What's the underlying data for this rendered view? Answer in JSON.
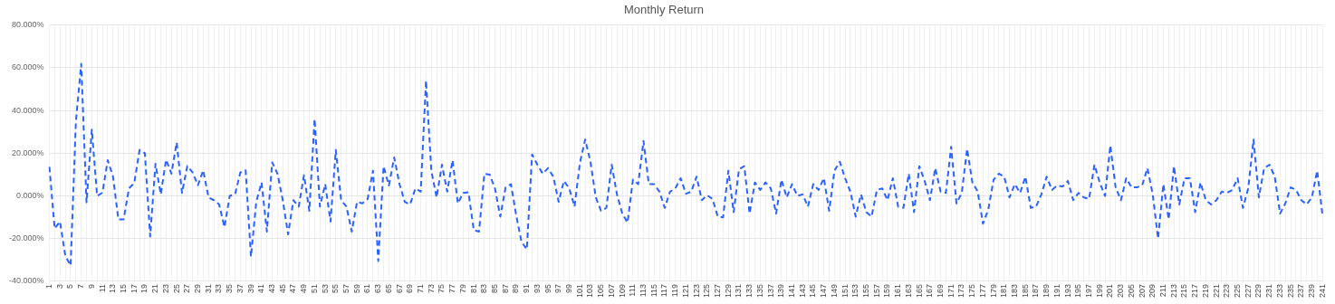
{
  "chart_data": {
    "type": "line",
    "title": "Monthly Return",
    "categories": [
      "1",
      null,
      "3",
      null,
      "5",
      null,
      "7",
      null,
      "9",
      null,
      "11",
      null,
      "13",
      null,
      "15",
      null,
      "17",
      null,
      "19",
      null,
      "21",
      null,
      "23",
      null,
      "25",
      null,
      "27",
      null,
      "29",
      null,
      "31",
      null,
      "33",
      null,
      "35",
      null,
      "37",
      null,
      "39",
      null,
      "41",
      null,
      "43",
      null,
      "45",
      null,
      "47",
      null,
      "49",
      null,
      "51",
      null,
      "53",
      null,
      "55",
      null,
      "57",
      null,
      "59",
      null,
      "61",
      null,
      "63",
      null,
      "65",
      null,
      "67",
      null,
      "69",
      null,
      "71",
      null,
      "73",
      null,
      "75",
      null,
      "77",
      null,
      "79",
      null,
      "81",
      null,
      "83",
      null,
      "85",
      null,
      "87",
      null,
      "89",
      null,
      "91",
      null,
      "93",
      null,
      "95",
      null,
      "97",
      null,
      "99",
      null,
      "101",
      null,
      "103",
      null,
      "105",
      null,
      "107",
      null,
      "109",
      null,
      "111",
      null,
      "113",
      null,
      "115",
      null,
      "117",
      null,
      "119",
      null,
      "121",
      null,
      "123",
      null,
      "125",
      null,
      "127",
      null,
      "129",
      null,
      "131",
      null,
      "133",
      null,
      "135",
      null,
      "137",
      null,
      "139",
      null,
      "141",
      null,
      "143",
      null,
      "145",
      null,
      "147",
      null,
      "149",
      null,
      "151",
      null,
      "153",
      null,
      "155",
      null,
      "157",
      null,
      "159",
      null,
      "161",
      null,
      "163",
      null,
      "165",
      null,
      "167",
      null,
      "169",
      null,
      "171",
      null,
      "173",
      null,
      "175",
      null,
      "177",
      null,
      "179",
      null,
      "181",
      null,
      "183",
      null,
      "185",
      null,
      "187",
      null,
      "189",
      null,
      "191",
      null,
      "193",
      null,
      "195",
      null,
      "197",
      null,
      "199",
      null,
      "201",
      null,
      "203",
      null,
      "205",
      null,
      "207",
      null,
      "209",
      null,
      "211",
      null,
      "213",
      null,
      "215",
      null,
      "217",
      null,
      "219",
      null,
      "221",
      null,
      "223",
      null,
      "225",
      null,
      "227",
      null,
      "229",
      null,
      "231",
      null,
      "233",
      null,
      "235",
      null,
      "237",
      null,
      "239",
      null,
      "241"
    ],
    "series": [
      {
        "color": "#2962ff",
        "values": [
          13.6,
          -15.3,
          -12,
          -28,
          -32.6,
          35,
          61.8,
          -3,
          31,
          0,
          1.5,
          16.7,
          9,
          -11,
          -11,
          3.5,
          6,
          21.5,
          20,
          -19,
          15,
          0.7,
          17,
          10.4,
          25,
          1.4,
          14,
          11,
          5,
          12,
          -0.7,
          -2,
          -4,
          -14.6,
          0,
          0.7,
          11,
          12,
          -28.5,
          -2.8,
          6.3,
          -16.7,
          15.7,
          10.4,
          -2,
          -18,
          -2,
          -5,
          9.7,
          -7,
          36,
          -5,
          5.5,
          -12,
          21.5,
          -2,
          -5,
          -16.7,
          -2.8,
          -3.5,
          -1.4,
          11.8,
          -30.5,
          13.9,
          4.9,
          18,
          5.5,
          -2.8,
          -4,
          3.5,
          2,
          54,
          11.8,
          -0.7,
          14.6,
          2,
          16.7,
          -3.5,
          1.4,
          1.7,
          -16,
          -16.7,
          10.4,
          10,
          3.5,
          -9.7,
          4,
          5.5,
          -9,
          -21.5,
          -25,
          19.4,
          14.6,
          10.4,
          13,
          9,
          -2.8,
          7,
          3.5,
          -5,
          15.3,
          26.4,
          16,
          -0.7,
          -7,
          -5.6,
          14.6,
          0.7,
          -8.3,
          -12.5,
          7.6,
          5.5,
          25.7,
          5.5,
          5.5,
          2,
          -5.6,
          2,
          3.5,
          8.3,
          1,
          2,
          9,
          -2,
          0.3,
          -1.4,
          -9.7,
          -10,
          11.8,
          -7.6,
          12.5,
          13.9,
          -8.3,
          6.3,
          2.8,
          6.3,
          3.5,
          -8.3,
          7.6,
          -0.7,
          5.5,
          0,
          0.7,
          -5,
          5.5,
          2.8,
          8.3,
          -7,
          11.8,
          16,
          8.3,
          2,
          -9.7,
          0.7,
          -7.6,
          -9.7,
          2.8,
          3.5,
          -2,
          8.3,
          -5,
          -5.6,
          10.4,
          -7.6,
          13.9,
          7,
          -2,
          13,
          2,
          1.4,
          23,
          -3.5,
          1.4,
          22,
          6.3,
          2,
          -13,
          -6.3,
          7.6,
          10.4,
          9,
          -0.7,
          5.5,
          1.4,
          9,
          -5.6,
          -5,
          0.7,
          9,
          2.8,
          4.9,
          4.4,
          7,
          -2,
          1.4,
          -0.7,
          -1.4,
          14.6,
          6.3,
          0,
          23.6,
          4,
          -2,
          8.3,
          4,
          4,
          4.9,
          13,
          0.7,
          -20,
          5.5,
          -11,
          13.9,
          -4,
          8.3,
          8.3,
          -7.6,
          6.3,
          -2,
          -4,
          -2,
          2,
          1.4,
          2.8,
          8.3,
          -5.6,
          3.5,
          26.4,
          -0.7,
          13,
          14.6,
          9,
          -8.3,
          -3.5,
          4,
          2.8,
          -2,
          -4,
          -0.7,
          11.8,
          -9
        ]
      }
    ],
    "ylim": [
      -40,
      80
    ],
    "yticks": [
      {
        "value": -40,
        "label": "-40.000%"
      },
      {
        "value": -20,
        "label": "-20.000%"
      },
      {
        "value": 0,
        "label": "0.000%"
      },
      {
        "value": 20,
        "label": "20.000%"
      },
      {
        "value": 40,
        "label": "40.000%"
      },
      {
        "value": 60,
        "label": "60.000%"
      },
      {
        "value": 80,
        "label": "80.000%"
      }
    ],
    "grid": true,
    "line_style": "dashed",
    "marker": "none"
  }
}
